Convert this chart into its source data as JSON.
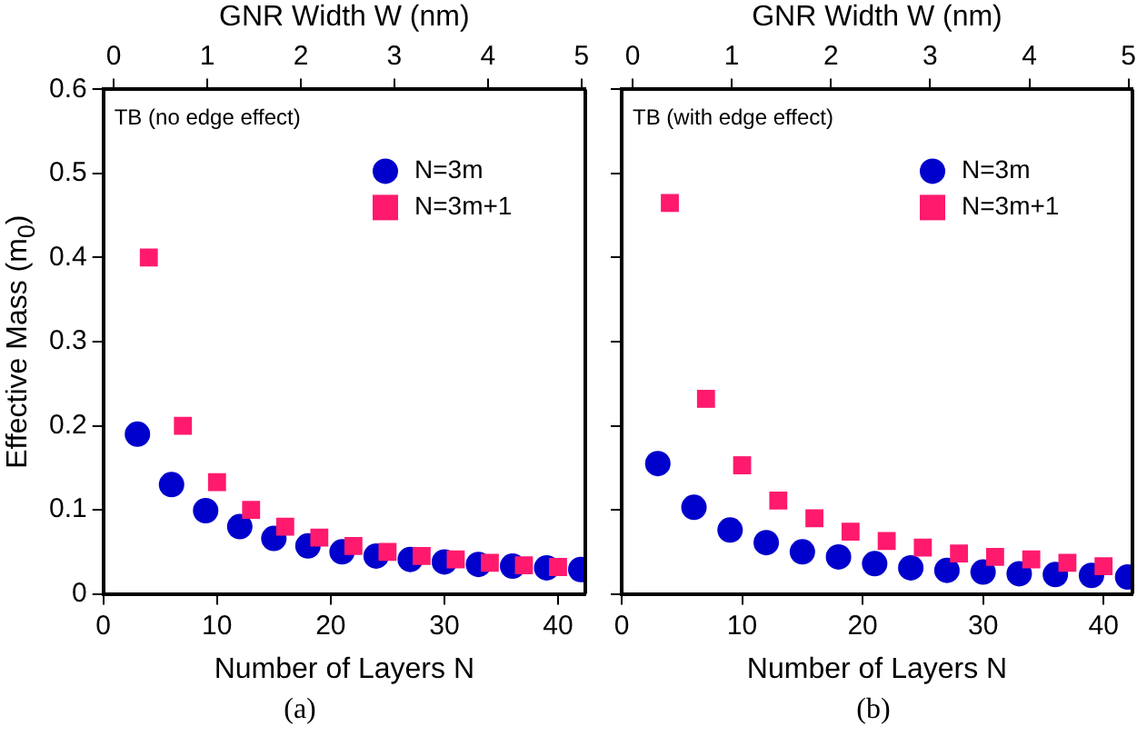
{
  "chart_data": [
    {
      "type": "scatter",
      "xlabel": "Number of Layers N",
      "ylabel": "Effective Mass (m$_{0}$)",
      "x2label": "GNR Width W (nm)",
      "xlim": [
        0,
        42.4
      ],
      "xticks": [
        0,
        10,
        20,
        30,
        40
      ],
      "ylim": [
        0,
        0.6
      ],
      "yticks": [
        0,
        0.1,
        0.2,
        0.3,
        0.4,
        0.5,
        0.6
      ],
      "x2lim": [
        -0.11,
        5.04
      ],
      "x2ticks": [
        0,
        1,
        2,
        3,
        4,
        5
      ],
      "legend": "top right",
      "annotations": [
        "TB (no edge effect)",
        "(a)"
      ],
      "series": [
        {
          "name": "N=3m",
          "color": "#0000cc",
          "marker": "circle",
          "x": [
            3,
            6,
            9,
            12,
            15,
            18,
            21,
            24,
            27,
            30,
            33,
            36,
            39,
            42
          ],
          "values": [
            0.19,
            0.13,
            0.099,
            0.08,
            0.066,
            0.057,
            0.05,
            0.045,
            0.041,
            0.038,
            0.035,
            0.033,
            0.031,
            0.029
          ]
        },
        {
          "name": "N=3m+1",
          "color": "#ff1a6e",
          "marker": "square",
          "x": [
            4,
            7,
            10,
            13,
            16,
            19,
            22,
            25,
            28,
            31,
            34,
            37,
            40
          ],
          "values": [
            0.4,
            0.2,
            0.133,
            0.1,
            0.08,
            0.067,
            0.057,
            0.05,
            0.045,
            0.041,
            0.037,
            0.034,
            0.032
          ]
        }
      ]
    },
    {
      "type": "scatter",
      "xlabel": "Number of Layers N",
      "x2label": "GNR Width W (nm)",
      "xlim": [
        0,
        42.4
      ],
      "xticks": [
        0,
        10,
        20,
        30,
        40
      ],
      "ylim": [
        0,
        0.6
      ],
      "yticks": [
        0,
        0.1,
        0.2,
        0.3,
        0.4,
        0.5,
        0.6
      ],
      "x2lim": [
        -0.11,
        5.04
      ],
      "x2ticks": [
        0,
        1,
        2,
        3,
        4,
        5
      ],
      "legend": "top right",
      "tick_labels": "x",
      "annotations": [
        "TB (with edge effect)",
        "(b)"
      ],
      "series": [
        {
          "name": "N=3m",
          "color": "#0000cc",
          "marker": "circle",
          "x": [
            3,
            6,
            9,
            12,
            15,
            18,
            21,
            24,
            27,
            30,
            33,
            36,
            39,
            42
          ],
          "values": [
            0.155,
            0.103,
            0.076,
            0.061,
            0.05,
            0.044,
            0.036,
            0.031,
            0.028,
            0.026,
            0.024,
            0.023,
            0.022,
            0.02
          ]
        },
        {
          "name": "N=3m+1",
          "color": "#ff1a6e",
          "marker": "square",
          "x": [
            4,
            7,
            10,
            13,
            16,
            19,
            22,
            25,
            28,
            31,
            34,
            37,
            40
          ],
          "values": [
            0.465,
            0.232,
            0.153,
            0.111,
            0.09,
            0.074,
            0.063,
            0.055,
            0.048,
            0.044,
            0.041,
            0.037,
            0.033
          ]
        }
      ]
    }
  ]
}
